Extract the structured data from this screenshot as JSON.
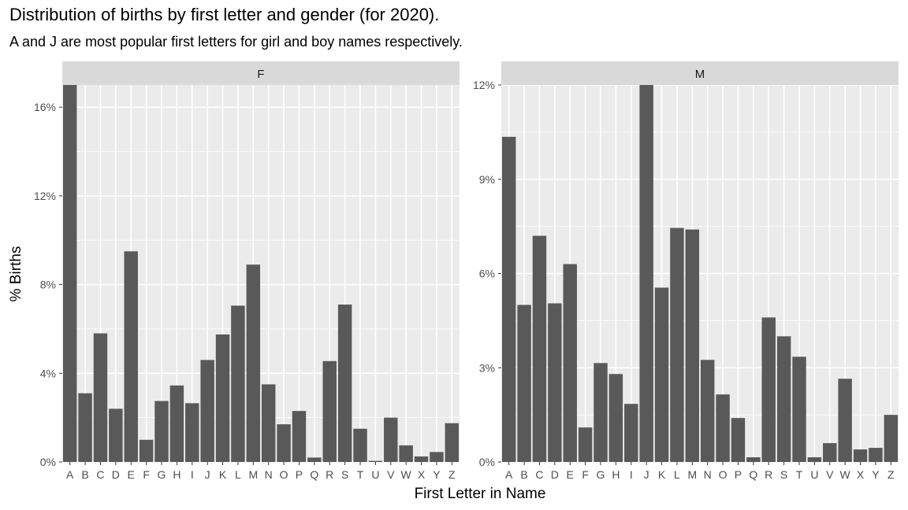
{
  "chart_data": {
    "type": "bar",
    "title": "Distribution of births by first letter and gender (for 2020).",
    "subtitle": "A and J are most popular first letters for girl and boy names respectively.",
    "xlabel": "First Letter in Name",
    "ylabel": "% Births",
    "categories": [
      "A",
      "B",
      "C",
      "D",
      "E",
      "F",
      "G",
      "H",
      "I",
      "J",
      "K",
      "L",
      "M",
      "N",
      "O",
      "P",
      "Q",
      "R",
      "S",
      "T",
      "U",
      "V",
      "W",
      "X",
      "Y",
      "Z"
    ],
    "grid": true,
    "facets": [
      {
        "name": "F",
        "ylim": [
          0,
          17.0
        ],
        "yticks": [
          0,
          4,
          8,
          12,
          16
        ],
        "yticklabels": [
          "0%",
          "4%",
          "8%",
          "12%",
          "16%"
        ],
        "values": [
          17.0,
          3.1,
          5.8,
          2.4,
          9.5,
          1.0,
          2.75,
          3.45,
          2.65,
          4.6,
          5.75,
          7.05,
          8.9,
          3.5,
          1.7,
          2.3,
          0.2,
          4.55,
          7.1,
          1.5,
          0.05,
          2.0,
          0.75,
          0.25,
          0.45,
          1.75
        ]
      },
      {
        "name": "M",
        "ylim": [
          0,
          12.0
        ],
        "yticks": [
          0,
          3,
          6,
          9,
          12
        ],
        "yticklabels": [
          "0%",
          "3%",
          "6%",
          "9%",
          "12%"
        ],
        "values": [
          10.35,
          5.0,
          7.2,
          5.05,
          6.3,
          1.1,
          3.15,
          2.8,
          1.85,
          12.0,
          5.55,
          7.45,
          7.4,
          3.25,
          2.15,
          1.4,
          0.15,
          4.6,
          4.0,
          3.35,
          0.15,
          0.6,
          2.65,
          0.4,
          0.45,
          1.5
        ]
      }
    ]
  }
}
